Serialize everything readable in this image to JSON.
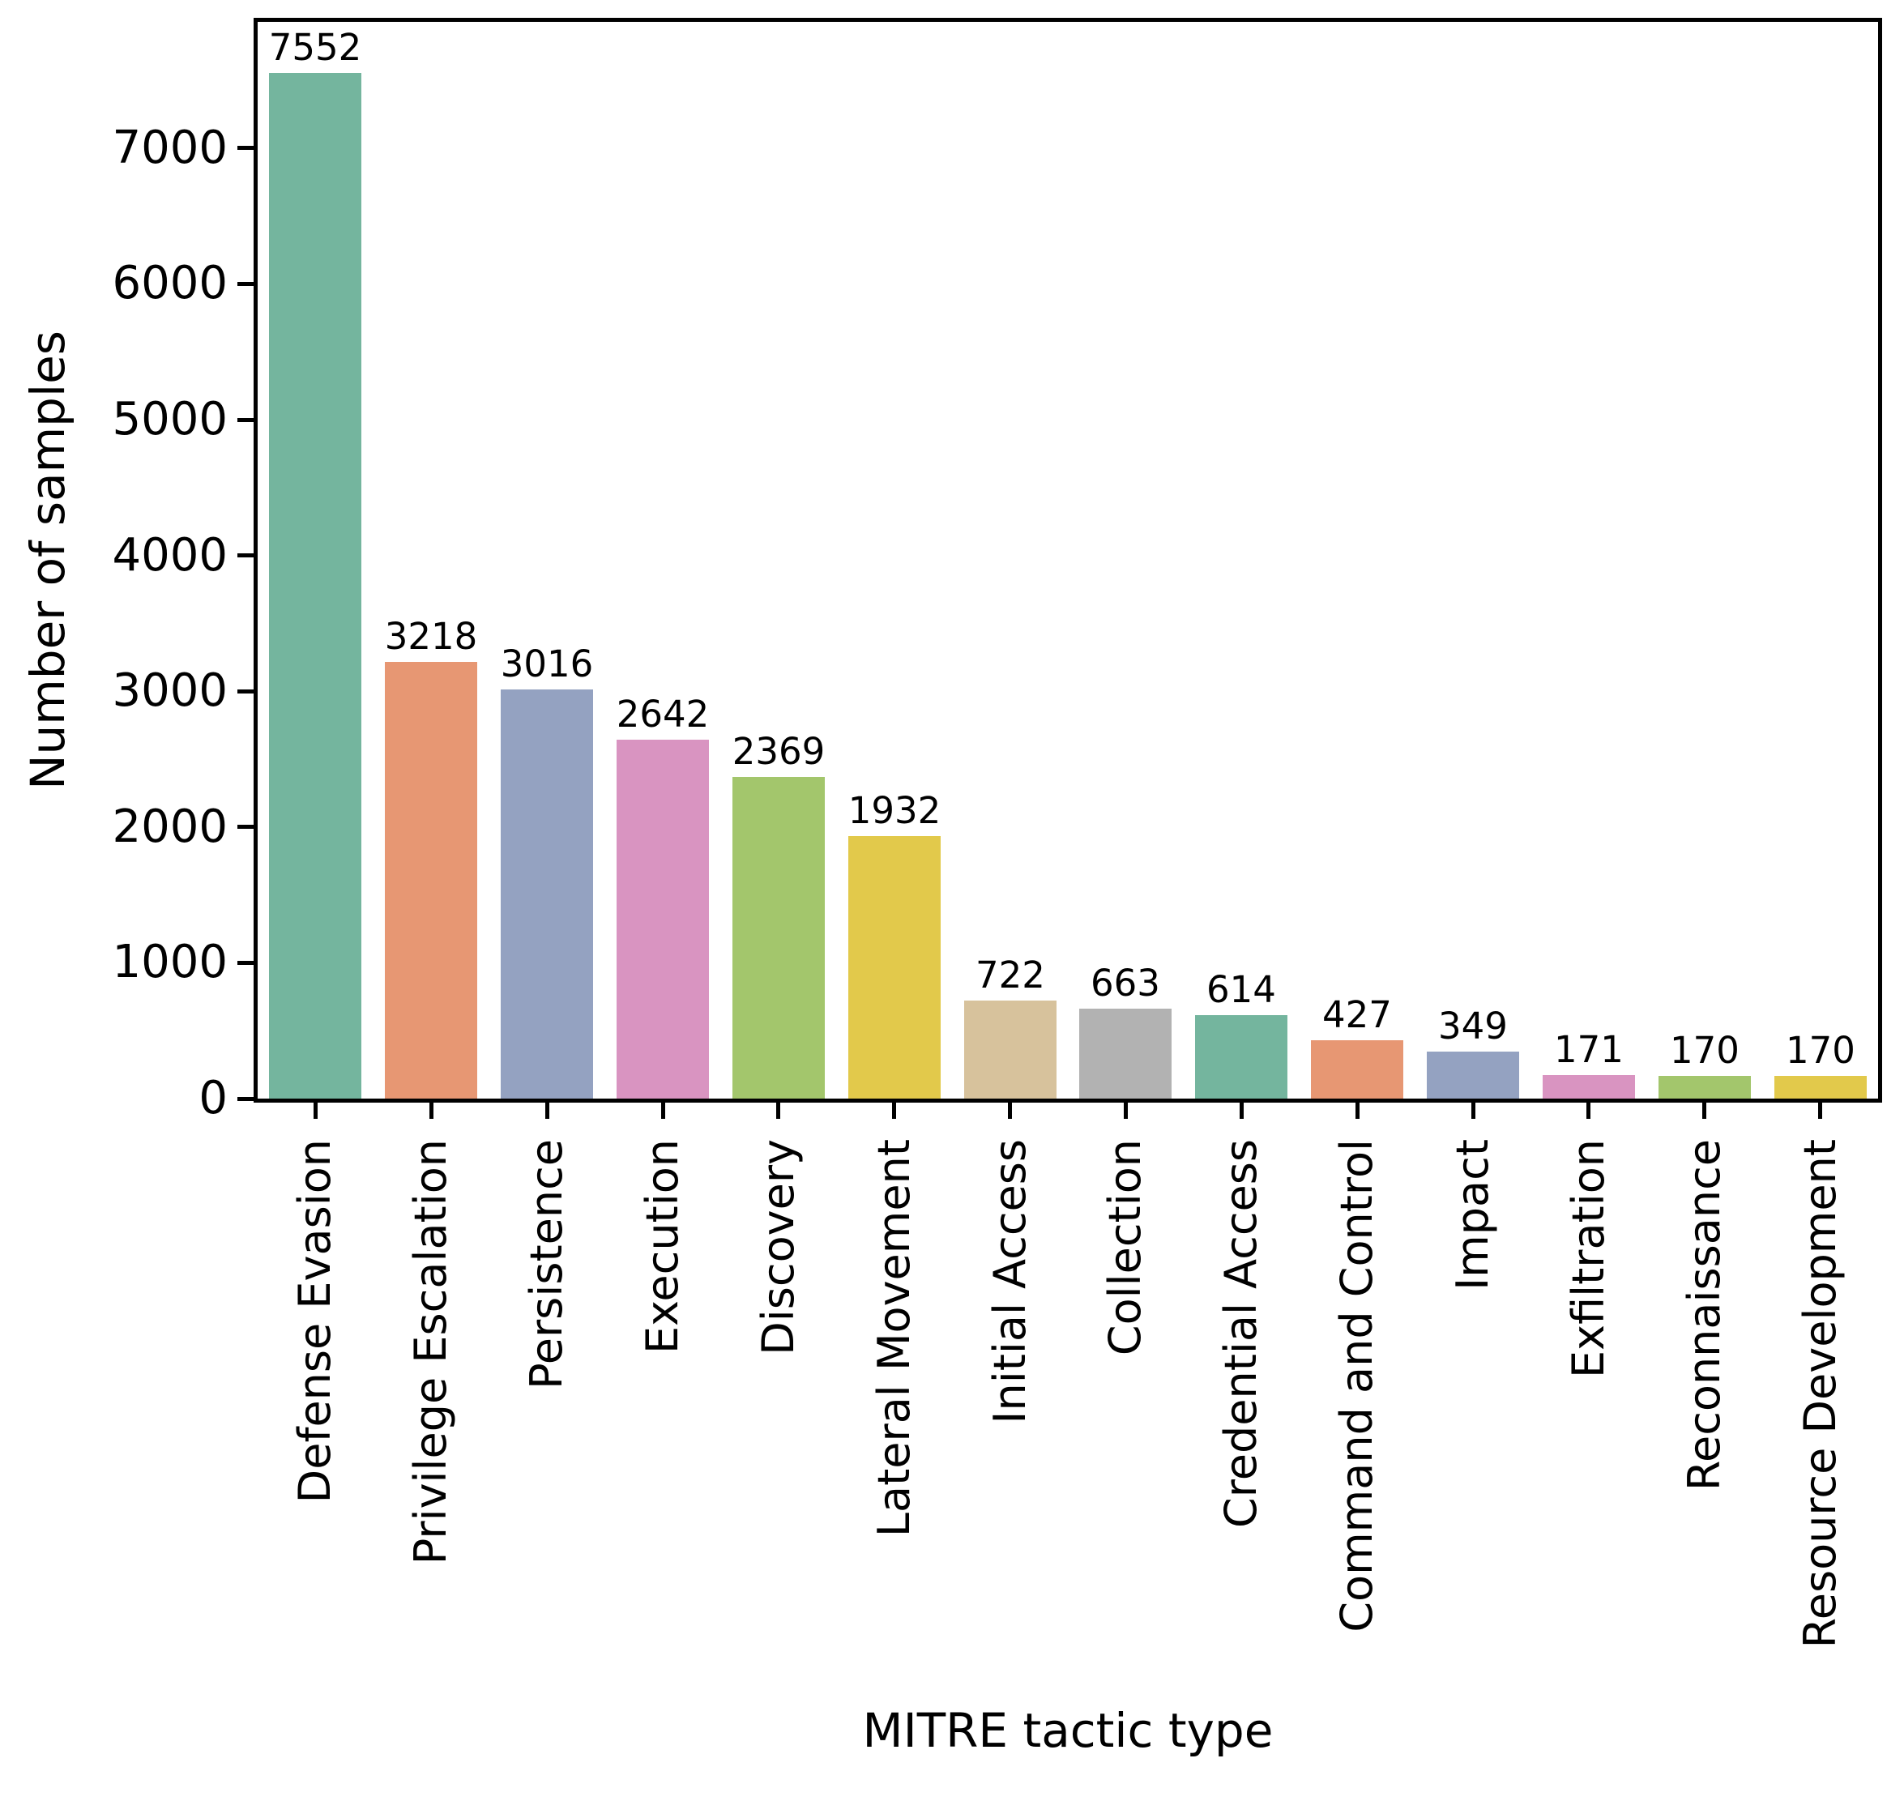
{
  "chart_data": {
    "type": "bar",
    "title": "",
    "xlabel": "MITRE tactic type",
    "ylabel": "Number of samples",
    "categories": [
      "Defense Evasion",
      "Privilege Escalation",
      "Persistence",
      "Execution",
      "Discovery",
      "Lateral Movement",
      "Initial Access",
      "Collection",
      "Credential Access",
      "Command and Control",
      "Impact",
      "Exfiltration",
      "Reconnaissance",
      "Resource Development"
    ],
    "values": [
      7552,
      3218,
      3016,
      2642,
      2369,
      1932,
      722,
      663,
      614,
      427,
      349,
      171,
      170,
      170
    ],
    "bar_value_labels": [
      "7552",
      "3218",
      "3016",
      "2642",
      "2369",
      "1932",
      "722",
      "663",
      "614",
      "427",
      "349",
      "171",
      "170",
      "170"
    ],
    "palette": [
      "#74b59e",
      "#e79773",
      "#94a2c1",
      "#d994c1",
      "#a3c66c",
      "#e2c94b",
      "#d7c29c",
      "#b2b2b2"
    ],
    "colors": [
      "#74b59e",
      "#e79773",
      "#94a2c1",
      "#d994c1",
      "#a3c66c",
      "#e2c94b",
      "#d7c29c",
      "#b2b2b2",
      "#74b59e",
      "#e79773",
      "#94a2c1",
      "#d994c1",
      "#a3c66c",
      "#e2c94b"
    ],
    "yticks": [
      0,
      1000,
      2000,
      3000,
      4000,
      5000,
      6000,
      7000
    ],
    "ylim": [
      0,
      7930
    ],
    "xtick_label_rotation_deg": 90,
    "grid": false,
    "legend_position": "none",
    "axis_color": "#000000",
    "text_color": "#000000",
    "background_color": "#ffffff"
  }
}
